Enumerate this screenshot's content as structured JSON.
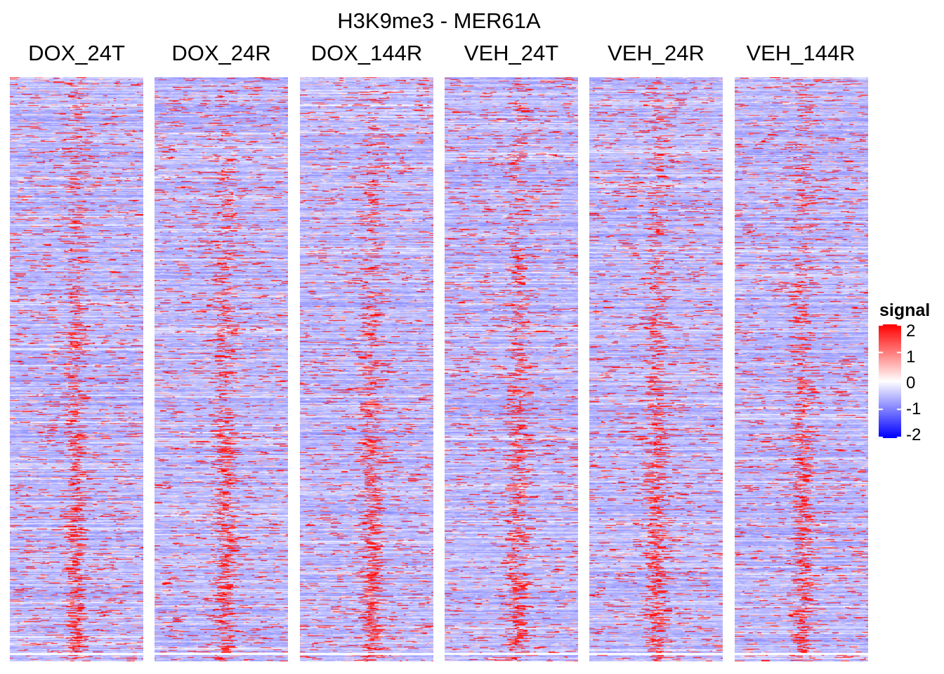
{
  "chart_data": {
    "type": "heatmap",
    "title": "H3K9me3 - MER61A",
    "panels": [
      "DOX_24T",
      "DOX_24R",
      "DOX_144R",
      "VEH_24T",
      "VEH_24R",
      "VEH_144R"
    ],
    "rows_approx": 800,
    "columns_per_panel_approx": 60,
    "legend": {
      "title": "signal",
      "ticks": [
        2,
        1,
        0,
        -1,
        -2
      ],
      "tick_labels": [
        "2",
        "1",
        "0",
        "-1",
        "-2"
      ],
      "range": [
        -2,
        2
      ],
      "colors": {
        "low": "#0000ff",
        "mid": "#ffffff",
        "high": "#ff0000"
      },
      "placement": "right"
    },
    "pattern": "mostly low (light purple) background with sparse high (red) horizontal streaks; enrichment concentrates near panel center toward lower rows"
  }
}
